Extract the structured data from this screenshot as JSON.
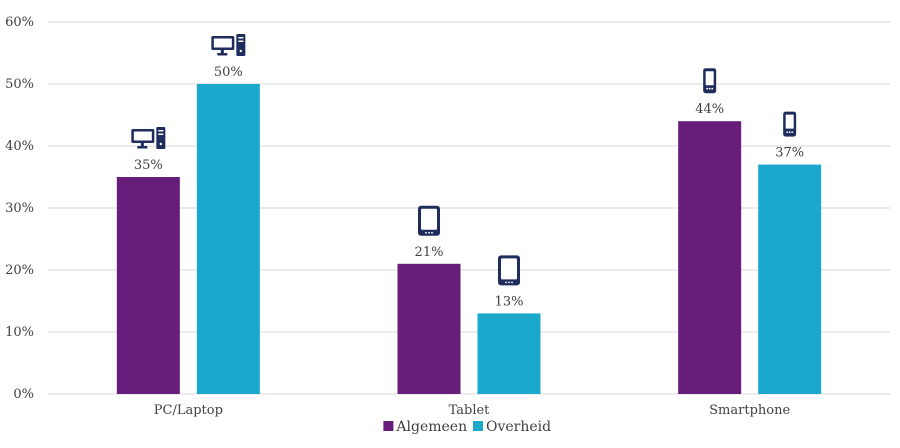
{
  "chart_data": {
    "type": "bar",
    "categories": [
      "PC/Laptop",
      "Tablet",
      "Smartphone"
    ],
    "series": [
      {
        "name": "Algemeen",
        "values": [
          35,
          21,
          44
        ],
        "color": "#661e7a"
      },
      {
        "name": "Overheid",
        "values": [
          50,
          13,
          37
        ],
        "color": "#1aa9cc"
      }
    ],
    "value_suffix": "%",
    "ylim": [
      0,
      60
    ],
    "yticks": [
      0,
      10,
      20,
      30,
      40,
      50,
      60
    ],
    "ytick_labels": [
      "0%",
      "10%",
      "20%",
      "30%",
      "40%",
      "50%",
      "60%"
    ],
    "grid": true,
    "legend_position": "bottom",
    "category_icons": [
      "desktop-computer-icon",
      "tablet-icon",
      "smartphone-icon"
    ],
    "icon_color": "#1f2d5c"
  }
}
